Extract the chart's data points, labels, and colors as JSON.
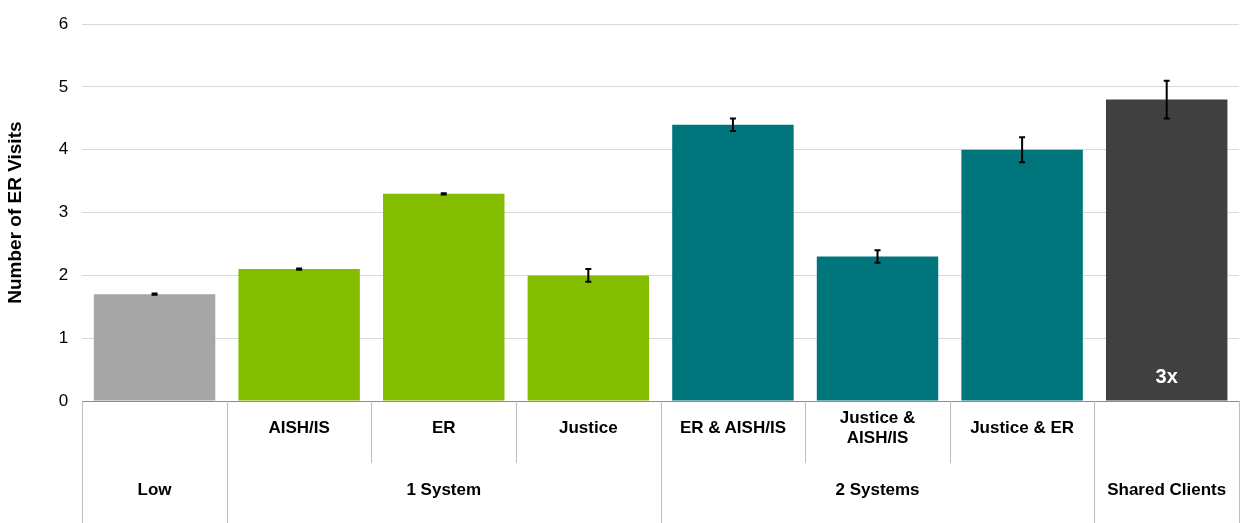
{
  "chart_data": {
    "type": "bar",
    "ylabel": "Number of ER Visits",
    "categories": [
      null,
      "AISH/IS",
      "ER",
      "Justice",
      "ER & AISH/IS",
      "Justice & AISH/IS",
      "Justice & ER",
      null
    ],
    "values": [
      1.7,
      2.1,
      3.3,
      2.0,
      4.4,
      2.3,
      4.0,
      4.8
    ],
    "colors": [
      "#a6a6a6",
      "#84bd00",
      "#84bd00",
      "#84bd00",
      "#00757c",
      "#00757c",
      "#00757c",
      "#404040"
    ],
    "errors": [
      0.01,
      0.01,
      0.01,
      0.1,
      0.1,
      0.1,
      0.2,
      0.3
    ],
    "ylim": [
      0,
      6
    ],
    "yticks": [
      0,
      1,
      2,
      3,
      4,
      5,
      6
    ],
    "grid": "y",
    "legend": false,
    "annotations": [
      "Low",
      "1 System",
      "2 Systems",
      "Shared Clients",
      "3x"
    ]
  }
}
